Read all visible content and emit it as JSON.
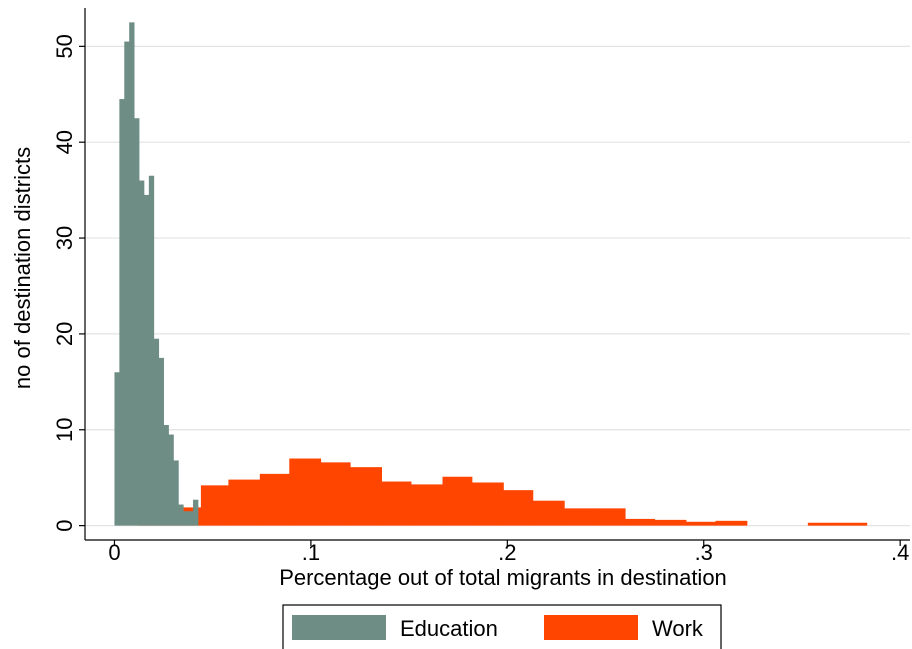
{
  "chart_data": {
    "type": "bar",
    "subtype": "overlaid-histogram",
    "xlabel": "Percentage out of total migrants in destination",
    "ylabel": "no of destination districts",
    "xlim": [
      -0.015,
      0.405
    ],
    "ylim": [
      -1.5,
      54
    ],
    "x_ticks": [
      0,
      0.1,
      0.2,
      0.3,
      0.4
    ],
    "x_tick_labels": [
      "0",
      ".1",
      ".2",
      ".3",
      ".4"
    ],
    "y_ticks": [
      0,
      10,
      20,
      30,
      40,
      50
    ],
    "y_tick_labels": [
      "0",
      "10",
      "20",
      "30",
      "40",
      "50"
    ],
    "grid": true,
    "legend_position": "bottom",
    "series": [
      {
        "name": "Work",
        "color": "#ff4500",
        "bins": [
          [
            0.012,
            0.028,
            1.3
          ],
          [
            0.028,
            0.044,
            1.9
          ],
          [
            0.044,
            0.058,
            4.2
          ],
          [
            0.058,
            0.074,
            4.8
          ],
          [
            0.074,
            0.089,
            5.4
          ],
          [
            0.089,
            0.105,
            7.0
          ],
          [
            0.105,
            0.12,
            6.6
          ],
          [
            0.12,
            0.136,
            6.1
          ],
          [
            0.136,
            0.151,
            4.6
          ],
          [
            0.151,
            0.167,
            4.3
          ],
          [
            0.167,
            0.182,
            5.1
          ],
          [
            0.182,
            0.198,
            4.5
          ],
          [
            0.198,
            0.213,
            3.7
          ],
          [
            0.213,
            0.229,
            2.6
          ],
          [
            0.229,
            0.244,
            1.8
          ],
          [
            0.244,
            0.26,
            1.8
          ],
          [
            0.26,
            0.275,
            0.7
          ],
          [
            0.275,
            0.291,
            0.6
          ],
          [
            0.291,
            0.306,
            0.4
          ],
          [
            0.306,
            0.322,
            0.5
          ],
          [
            0.353,
            0.368,
            0.3
          ],
          [
            0.368,
            0.383,
            0.3
          ]
        ]
      },
      {
        "name": "Education",
        "color": "#6e8d84",
        "bins": [
          [
            0.0,
            0.0025,
            16.0
          ],
          [
            0.0025,
            0.005,
            44.5
          ],
          [
            0.005,
            0.0075,
            50.5
          ],
          [
            0.0075,
            0.01,
            52.5
          ],
          [
            0.01,
            0.0125,
            42.5
          ],
          [
            0.0125,
            0.015,
            36.0
          ],
          [
            0.015,
            0.0175,
            34.5
          ],
          [
            0.0175,
            0.02,
            36.5
          ],
          [
            0.02,
            0.0225,
            19.5
          ],
          [
            0.0225,
            0.025,
            17.5
          ],
          [
            0.025,
            0.0275,
            10.5
          ],
          [
            0.0275,
            0.03,
            9.5
          ],
          [
            0.03,
            0.0325,
            6.8
          ],
          [
            0.0325,
            0.035,
            2.2
          ],
          [
            0.035,
            0.0375,
            1.5
          ],
          [
            0.0375,
            0.04,
            1.5
          ],
          [
            0.04,
            0.0425,
            2.7
          ]
        ]
      }
    ],
    "legend_entries": [
      {
        "name": "Education",
        "color": "#6e8d84"
      },
      {
        "name": "Work",
        "color": "#ff4500"
      }
    ]
  }
}
